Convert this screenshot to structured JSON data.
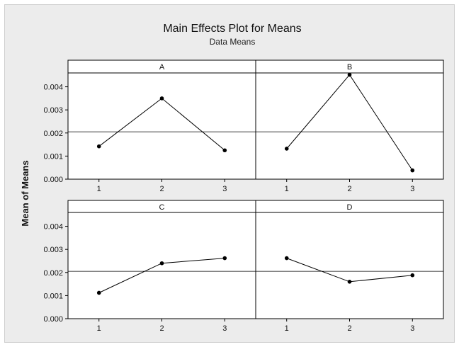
{
  "chart_data": {
    "type": "line",
    "title": "Main Effects Plot for Means",
    "subtitle": "Data Means",
    "ylabel": "Mean of Means",
    "xlabel": "",
    "ylim": [
      0,
      0.0046
    ],
    "yticks": [
      "0.000",
      "0.001",
      "0.002",
      "0.003",
      "0.004"
    ],
    "ytick_values": [
      0,
      0.001,
      0.002,
      0.003,
      0.004
    ],
    "categories": [
      "1",
      "2",
      "3"
    ],
    "reference_line": 0.00205,
    "grid": false,
    "panels": [
      {
        "name": "A",
        "values": [
          0.00142,
          0.0035,
          0.00125
        ]
      },
      {
        "name": "B",
        "values": [
          0.00132,
          0.00452,
          0.00038
        ]
      },
      {
        "name": "C",
        "values": [
          0.00112,
          0.0024,
          0.00262
        ]
      },
      {
        "name": "D",
        "values": [
          0.00262,
          0.0016,
          0.00188
        ]
      }
    ]
  }
}
